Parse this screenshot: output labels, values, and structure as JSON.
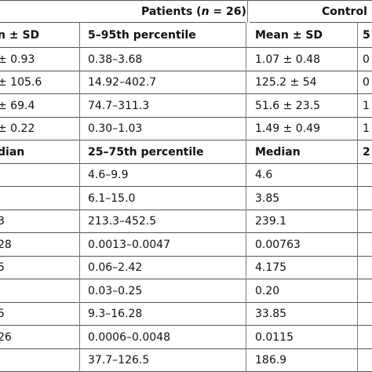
{
  "table": {
    "group_headers": [
      {
        "parts": [
          "Patients (",
          "n",
          " = 26)"
        ]
      },
      {
        "parts": [
          "Control"
        ]
      }
    ],
    "rows": [
      [
        "n ± SD",
        "5–95th percentile",
        "Mean ± SD",
        "5"
      ],
      [
        "± 0.93",
        "0.38–3.68",
        "1.07 ± 0.48",
        "0"
      ],
      [
        "± 105.6",
        "14.92–402.7",
        "125.2 ± 54",
        "0"
      ],
      [
        "± 69.4",
        "74.7–311.3",
        "51.6 ± 23.5",
        "1"
      ],
      [
        "± 0.22",
        "0.30–1.03",
        "1.49 ± 0.49",
        "1"
      ],
      [
        "dian",
        "25–75th percentile",
        "Median",
        "2"
      ],
      [
        null,
        "4.6–9.9",
        "4.6",
        null
      ],
      [
        null,
        "6.1–15.0",
        "3.85",
        null
      ],
      [
        "3",
        "213.3–452.5",
        "239.1",
        null
      ],
      [
        "28",
        "0.0013–0.0047",
        "0.00763",
        null
      ],
      [
        "5",
        "0.06–2.42",
        "4.175",
        null
      ],
      [
        null,
        "0.03–0.25",
        "0.20",
        null
      ],
      [
        "5",
        "9.3–16.28",
        "33.85",
        null
      ],
      [
        "26",
        "0.0006–0.0048",
        "0.0115",
        null
      ],
      [
        null,
        "37.7–126.5",
        "186.9",
        null
      ]
    ]
  }
}
